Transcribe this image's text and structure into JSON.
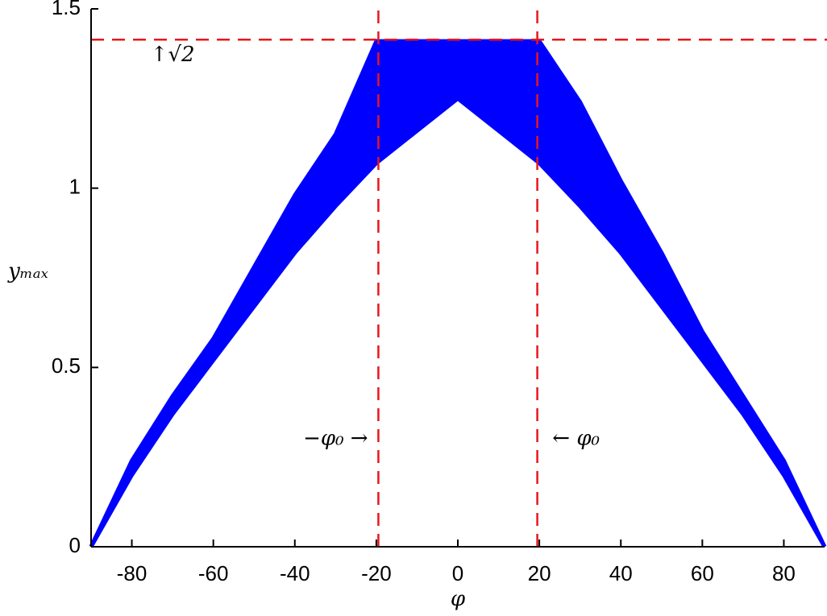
{
  "chart_data": {
    "type": "band",
    "x_label": "φ",
    "y_label": "yₘₐₓ",
    "x": [
      -90,
      -80,
      -70,
      -60,
      -50,
      -40,
      -30,
      -20,
      -10,
      0,
      10,
      20,
      30,
      40,
      50,
      60,
      70,
      80,
      90
    ],
    "upper": [
      0,
      0.24,
      0.42,
      0.58,
      0.78,
      0.98,
      1.15,
      1.41,
      1.41,
      1.41,
      1.41,
      1.41,
      1.24,
      1.02,
      0.82,
      0.6,
      0.42,
      0.24,
      0
    ],
    "lower": [
      0,
      0.2,
      0.37,
      0.52,
      0.67,
      0.82,
      0.95,
      1.07,
      1.16,
      1.25,
      1.16,
      1.07,
      0.95,
      0.82,
      0.67,
      0.52,
      0.37,
      0.2,
      0
    ],
    "color": "#0000ff",
    "ref_color": "#e8161b",
    "hlines": [
      1.414
    ],
    "vlines": [
      -19.5,
      19.5
    ],
    "annotations": [
      {
        "text": "↑√2",
        "x": -70,
        "y": 1.37
      },
      {
        "text": "−φ₀ →",
        "x": -30,
        "y": 0.3
      },
      {
        "text": "← φ₀",
        "x": 29,
        "y": 0.3
      }
    ],
    "xlim": [
      -90,
      90
    ],
    "ylim": [
      0,
      1.5
    ],
    "xticks": [
      -80,
      -60,
      -40,
      -20,
      0,
      20,
      40,
      60,
      80
    ],
    "yticks": [
      0,
      0.5,
      1,
      1.5
    ]
  }
}
